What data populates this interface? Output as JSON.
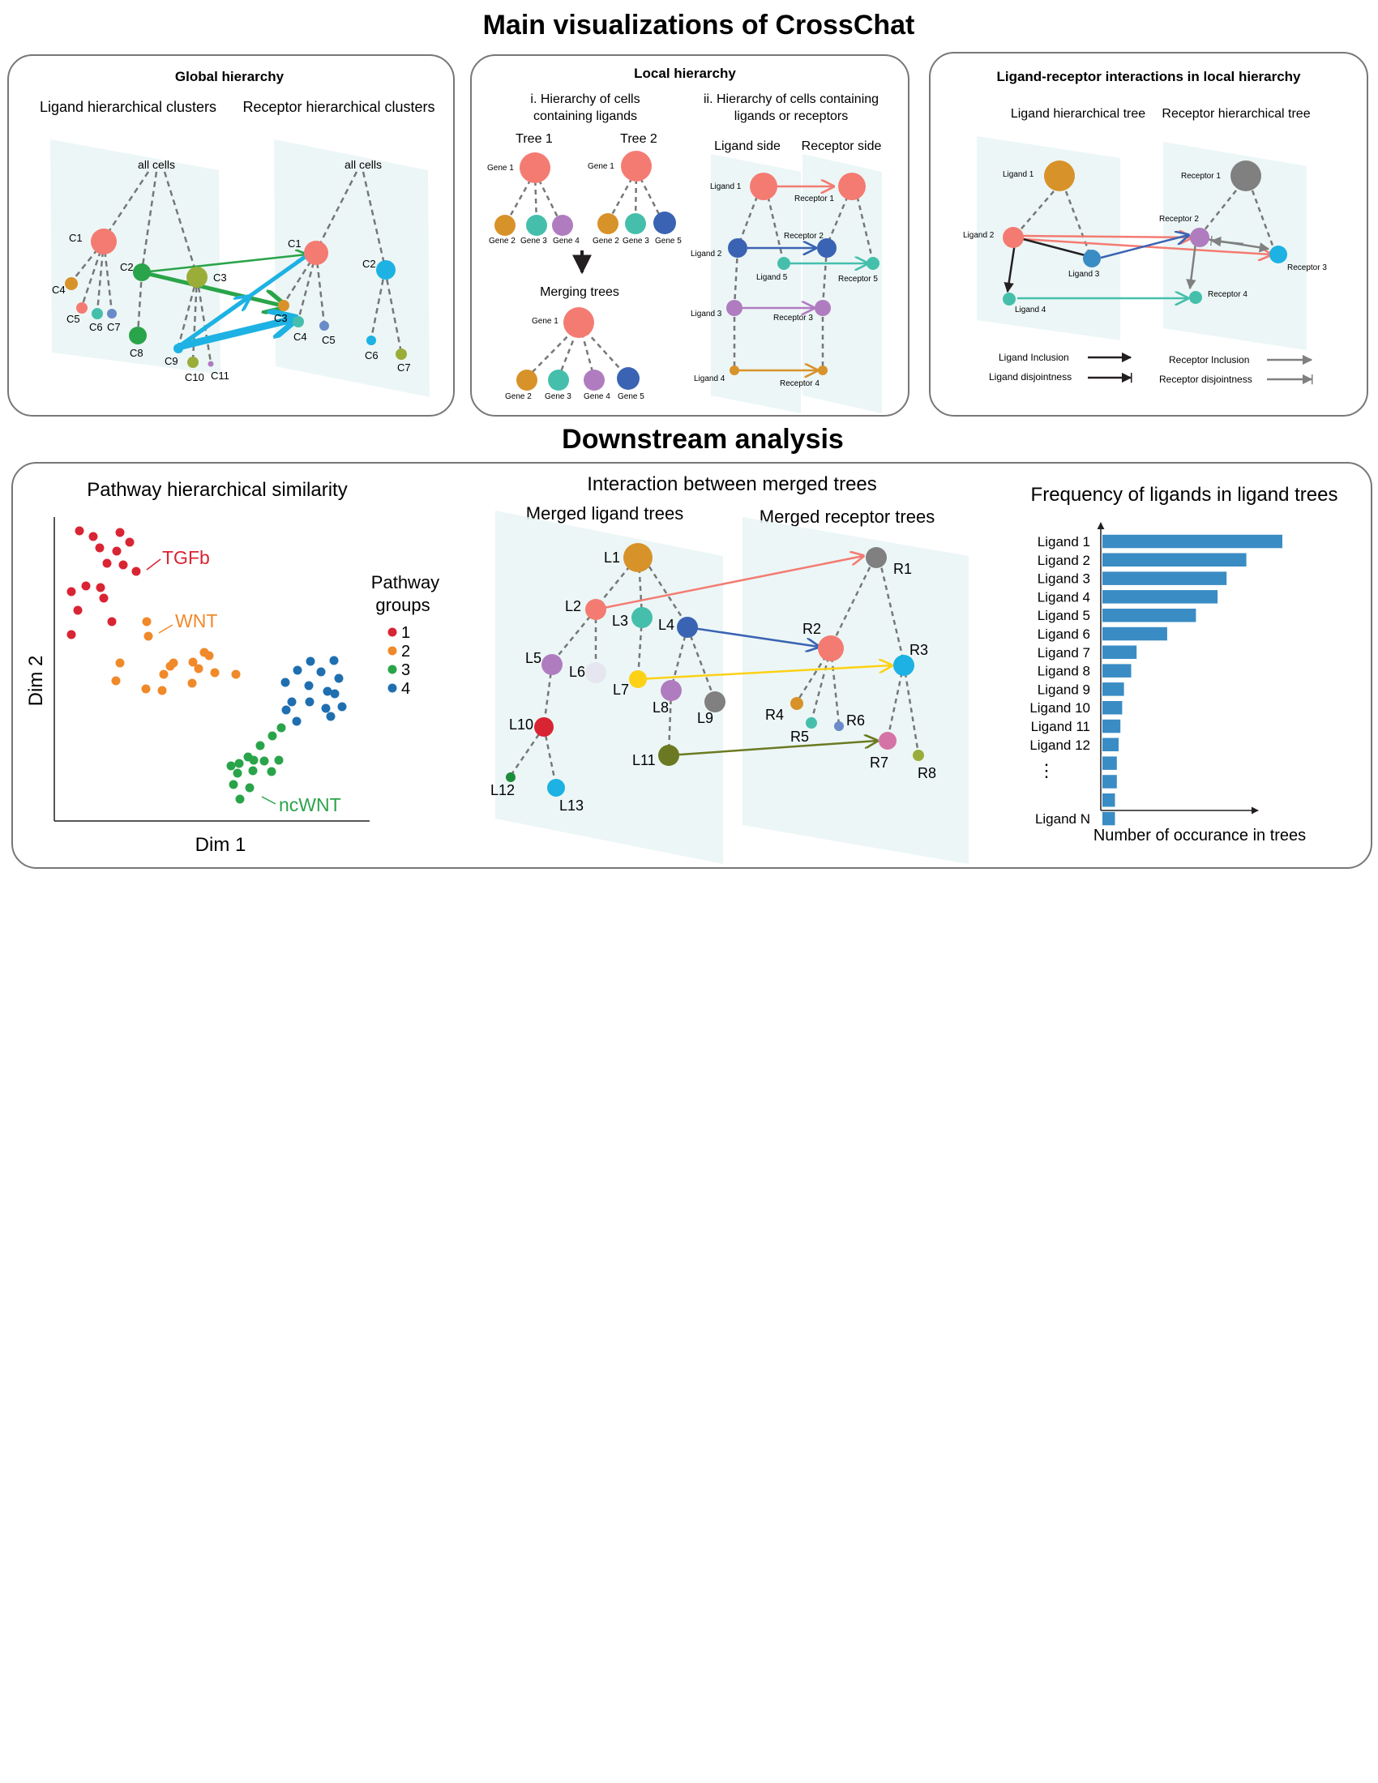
{
  "title_main": "Main visualizations of CrossChat",
  "title_downstream": "Downstream analysis",
  "colors": {
    "salmon": "#f47b72",
    "orange": "#d8922a",
    "teal": "#45bfac",
    "purple": "#b07cc0",
    "blue": "#3a63b3",
    "green": "#2aa44a",
    "olive": "#9aad39",
    "cyan": "#1db2e3",
    "gray": "#808080",
    "red": "#d92433",
    "steelblue": "#6a8ac8",
    "lightgray": "#e6e6f0",
    "yellow": "#fcd116",
    "darkolive": "#6b7a22",
    "darkgreen": "#1d8c3a",
    "bar": "#3a8cc4",
    "pathway_orange": "#f0892a",
    "pathway_blue": "#1f6fb0"
  },
  "global_panel": {
    "title": "Global hierarchy",
    "ligand_label": "Ligand hierarchical clusters",
    "receptor_label": "Receptor hierarchical clusters",
    "ligand_root": "all cells",
    "receptor_root": "all cells",
    "ligand_nodes": [
      "C1",
      "C2",
      "C3",
      "C4",
      "C5",
      "C6",
      "C7",
      "C8",
      "C9",
      "C10",
      "C11"
    ],
    "receptor_nodes": [
      "C1",
      "C2",
      "C3",
      "C4",
      "C5",
      "C6",
      "C7"
    ]
  },
  "local_panel": {
    "title": "Local hierarchy",
    "sub_i": [
      "i. Hierarchy of cells",
      "containing ligands"
    ],
    "sub_ii": [
      "ii. Hierarchy of cells containing",
      "ligands or receptors"
    ],
    "tree1": "Tree 1",
    "tree2": "Tree 2",
    "tree1_genes": [
      "Gene 1",
      "Gene 2",
      "Gene 3",
      "Gene 4"
    ],
    "tree2_genes": [
      "Gene 1",
      "Gene 2",
      "Gene 3",
      "Gene 5"
    ],
    "merging": "Merging trees",
    "merged_genes": [
      "Gene 1",
      "Gene 2",
      "Gene 3",
      "Gene 4",
      "Gene 5"
    ],
    "ligand_side": "Ligand side",
    "receptor_side": "Receptor side",
    "ligands": [
      "Ligand 1",
      "Ligand 2",
      "Ligand 3",
      "Ligand 4",
      "Ligand 5"
    ],
    "receptors": [
      "Receptor 1",
      "Receptor 2",
      "Receptor 3",
      "Receptor 4",
      "Receptor 5"
    ]
  },
  "lr_panel": {
    "title": "Ligand-receptor interactions in local hierarchy",
    "ligand_tree": "Ligand hierarchical tree",
    "receptor_tree": "Receptor hierarchical tree",
    "ligands": [
      "Ligand 1",
      "Ligand 2",
      "Ligand 3",
      "Ligand 4"
    ],
    "receptors": [
      "Receptor 1",
      "Receptor 2",
      "Receptor 3",
      "Receptor 4"
    ],
    "legend": {
      "ligand_inclusion": "Ligand Inclusion",
      "ligand_disjointness": "Ligand disjointness",
      "receptor_inclusion": "Receptor Inclusion",
      "receptor_disjointness": "Receptor disjointness"
    }
  },
  "pathway_panel": {
    "title": "Pathway hierarchical similarity",
    "xlabel": "Dim 1",
    "ylabel": "Dim 2",
    "legend_title": [
      "Pathway",
      "groups"
    ],
    "groups": [
      "1",
      "2",
      "3",
      "4"
    ],
    "annotations": [
      "TGFb",
      "WNT",
      "ncWNT"
    ]
  },
  "merged_panel": {
    "title": "Interaction between merged trees",
    "ligand_trees": "Merged ligand trees",
    "receptor_trees": "Merged receptor trees",
    "ligand_nodes": [
      "L1",
      "L2",
      "L3",
      "L4",
      "L5",
      "L6",
      "L7",
      "L8",
      "L9",
      "L10",
      "L11",
      "L12",
      "L13"
    ],
    "receptor_nodes": [
      "R1",
      "R2",
      "R3",
      "R4",
      "R5",
      "R6",
      "R7",
      "R8"
    ]
  },
  "chart_data": {
    "type": "bar",
    "title": "Frequency of ligands in ligand trees",
    "xlabel": "Number of occurance in trees",
    "ylabel": "",
    "categories": [
      "Ligand 1",
      "Ligand 2",
      "Ligand 3",
      "Ligand 4",
      "Ligand 5",
      "Ligand 6",
      "Ligand 7",
      "Ligand 8",
      "Ligand 9",
      "Ligand 10",
      "Ligand 11",
      "Ligand 12",
      "",
      "",
      "",
      "Ligand N"
    ],
    "values": [
      100,
      80,
      69,
      64,
      52,
      36,
      19,
      16,
      12,
      11,
      10,
      9,
      8,
      8,
      7,
      7
    ],
    "ellipsis": "⋮"
  }
}
